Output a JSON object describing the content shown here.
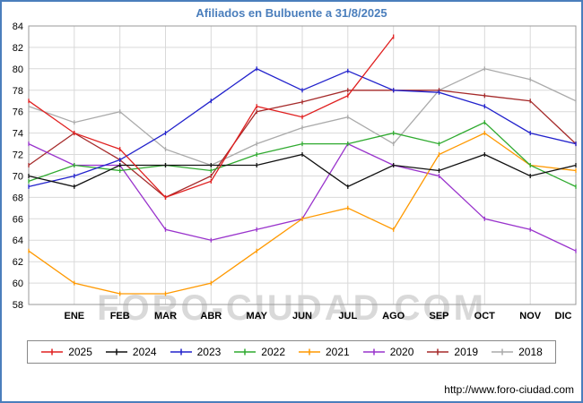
{
  "title": "Afiliados en Bulbuente a 31/8/2025",
  "watermark": "FORO-CIUDAD.COM",
  "footer": {
    "url_label": "http://www.foro-ciudad.com"
  },
  "colors": {
    "frame": "#4a7ebc",
    "title": "#4a7ebc",
    "grid": "#d9d9d9",
    "axis_border": "#999999"
  },
  "chart_data": {
    "type": "line",
    "title": "Afiliados en Bulbuente a 31/8/2025",
    "x_labels": [
      "",
      "ENE",
      "FEB",
      "MAR",
      "ABR",
      "MAY",
      "JUN",
      "JUL",
      "AGO",
      "SEP",
      "OCT",
      "NOV",
      "DIC"
    ],
    "ylim": [
      58,
      84
    ],
    "ytick_step": 2,
    "grid": true,
    "legend_position": "bottom",
    "legend_order": [
      "2025",
      "2024",
      "2023",
      "2022",
      "2021",
      "2020",
      "2019",
      "2018"
    ],
    "series": [
      {
        "name": "2025",
        "color": "#e02020",
        "values": [
          77,
          74,
          72.5,
          68,
          69.5,
          76.5,
          75.5,
          77.5,
          83
        ]
      },
      {
        "name": "2024",
        "color": "#111111",
        "values": [
          70,
          69,
          71,
          71,
          71,
          71,
          72,
          69,
          71,
          70.5,
          72,
          70,
          71
        ]
      },
      {
        "name": "2023",
        "color": "#2222cc",
        "values": [
          69,
          70,
          71.5,
          74,
          77,
          80,
          78,
          79.8,
          78,
          77.8,
          76.5,
          74,
          73
        ]
      },
      {
        "name": "2022",
        "color": "#2faa2f",
        "values": [
          69.5,
          71,
          70.5,
          71,
          70.5,
          72,
          73,
          73,
          74,
          73,
          75,
          71,
          69
        ]
      },
      {
        "name": "2021",
        "color": "#ff9900",
        "values": [
          63,
          60,
          59,
          59,
          60,
          63,
          66,
          67,
          65,
          72,
          74,
          71,
          70.5
        ]
      },
      {
        "name": "2020",
        "color": "#9933cc",
        "values": [
          73,
          71,
          71,
          65,
          64,
          65,
          66,
          73,
          71,
          70,
          66,
          65,
          63
        ]
      },
      {
        "name": "2019",
        "color": "#a52a2a",
        "values": [
          71,
          74,
          71.5,
          68,
          70,
          76,
          76.9,
          78,
          78,
          78,
          77.5,
          77,
          73
        ]
      },
      {
        "name": "2018",
        "color": "#aaaaaa",
        "values": [
          76.5,
          75,
          76,
          72.5,
          71,
          73,
          74.5,
          75.5,
          73,
          78,
          80,
          79,
          77
        ]
      }
    ]
  }
}
